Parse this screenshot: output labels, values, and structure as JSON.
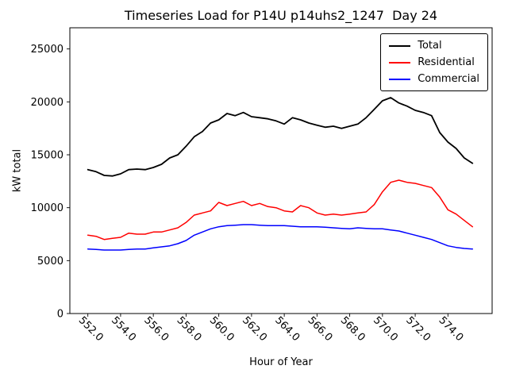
{
  "figure": {
    "title": "Timeseries Load for P14U p14uhs2_1247  Day 24",
    "xlabel": "Hour of Year",
    "ylabel": "kW total"
  },
  "chart_data": {
    "type": "line",
    "title": "Timeseries Load for P14U p14uhs2_1247  Day 24",
    "xlabel": "Hour of Year",
    "ylabel": "kW total",
    "grid": false,
    "legend_position": "upper right",
    "xlim": [
      550.9,
      576.7
    ],
    "ylim": [
      0,
      27000
    ],
    "xticks": [
      552,
      554,
      556,
      558,
      560,
      562,
      564,
      566,
      568,
      570,
      572,
      574
    ],
    "xtick_labels": [
      "552.0",
      "554.0",
      "556.0",
      "558.0",
      "560.0",
      "562.0",
      "564.0",
      "566.0",
      "568.0",
      "570.0",
      "572.0",
      "574.0"
    ],
    "yticks": [
      0,
      5000,
      10000,
      15000,
      20000,
      25000
    ],
    "ytick_labels": [
      "0",
      "5000",
      "10000",
      "15000",
      "20000",
      "25000"
    ],
    "x": [
      552.0,
      552.5,
      553.0,
      553.5,
      554.0,
      554.5,
      555.0,
      555.5,
      556.0,
      556.5,
      557.0,
      557.5,
      558.0,
      558.5,
      559.0,
      559.5,
      560.0,
      560.5,
      561.0,
      561.5,
      562.0,
      562.5,
      563.0,
      563.5,
      564.0,
      564.5,
      565.0,
      565.5,
      566.0,
      566.5,
      567.0,
      567.5,
      568.0,
      568.5,
      569.0,
      569.5,
      570.0,
      570.5,
      571.0,
      571.5,
      572.0,
      572.5,
      573.0,
      573.5,
      574.0,
      574.5,
      575.0,
      575.5
    ],
    "series": [
      {
        "name": "Total",
        "color": "#000000",
        "linewidth": 1.8,
        "values": [
          13600,
          13400,
          13050,
          13000,
          13200,
          13600,
          13650,
          13600,
          13800,
          14100,
          14700,
          15000,
          15800,
          16700,
          17200,
          18000,
          18300,
          18900,
          18700,
          19000,
          18600,
          18500,
          18400,
          18200,
          17900,
          18500,
          18300,
          18000,
          17800,
          17600,
          17700,
          17500,
          17700,
          17900,
          18500,
          19300,
          20100,
          20400,
          19900,
          19600,
          19200,
          19000,
          18700,
          17100,
          16200,
          15600,
          14700,
          14200
        ]
      },
      {
        "name": "Residential",
        "color": "#ff0000",
        "linewidth": 1.5,
        "values": [
          7400,
          7300,
          7000,
          7100,
          7200,
          7600,
          7500,
          7500,
          7700,
          7700,
          7900,
          8100,
          8600,
          9300,
          9500,
          9700,
          10500,
          10200,
          10400,
          10600,
          10200,
          10400,
          10100,
          10000,
          9700,
          9600,
          10200,
          10000,
          9500,
          9300,
          9400,
          9300,
          9400,
          9500,
          9600,
          10300,
          11500,
          12400,
          12600,
          12400,
          12300,
          12100,
          11900,
          11000,
          9800,
          9400,
          8800,
          8200
        ]
      },
      {
        "name": "Commercial",
        "color": "#0000ff",
        "linewidth": 1.5,
        "values": [
          6100,
          6050,
          6000,
          6000,
          6000,
          6050,
          6100,
          6100,
          6200,
          6300,
          6400,
          6600,
          6900,
          7400,
          7700,
          8000,
          8200,
          8300,
          8350,
          8400,
          8400,
          8350,
          8300,
          8300,
          8300,
          8250,
          8200,
          8200,
          8200,
          8150,
          8100,
          8050,
          8000,
          8100,
          8050,
          8000,
          8000,
          7900,
          7800,
          7600,
          7400,
          7200,
          7000,
          6700,
          6400,
          6250,
          6150,
          6100
        ]
      }
    ]
  }
}
